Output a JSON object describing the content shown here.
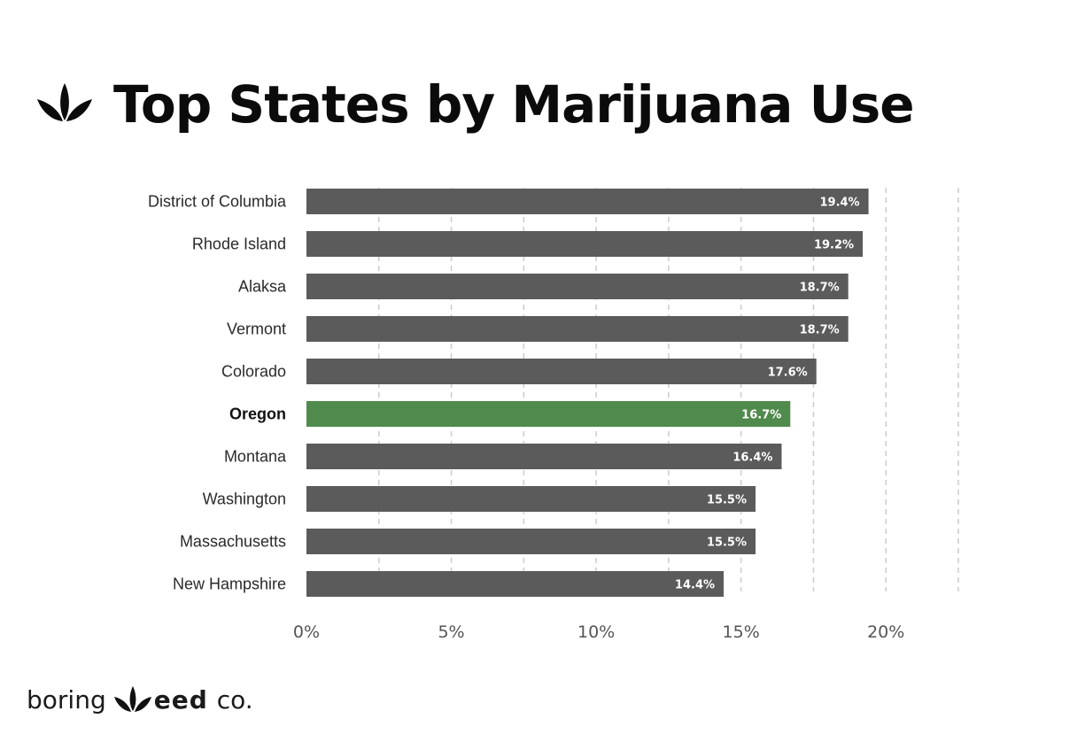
{
  "header": {
    "title": "Top States by Marijuana Use",
    "logo_icon": "cannabis-leaf-icon"
  },
  "brand": {
    "part1": "boring",
    "part2": "eed",
    "part3": "co.",
    "logo_icon": "cannabis-leaf-icon"
  },
  "colors": {
    "bar": "#5b5b5b",
    "highlight": "#508a4c",
    "grid": "#cccccc"
  },
  "chart_data": {
    "type": "bar",
    "orientation": "horizontal",
    "categories": [
      "District of Columbia",
      "Rhode Island",
      "Alaksa",
      "Vermont",
      "Colorado",
      "Oregon",
      "Montana",
      "Washington",
      "Massachusetts",
      "New Hampshire"
    ],
    "values": [
      19.4,
      19.2,
      18.7,
      18.7,
      17.6,
      16.7,
      16.4,
      15.5,
      15.5,
      14.4
    ],
    "value_labels": [
      "19.4%",
      "19.2%",
      "18.7%",
      "18.7%",
      "17.6%",
      "16.7%",
      "16.4%",
      "15.5%",
      "15.5%",
      "14.4%"
    ],
    "highlight": "Oregon",
    "xticks": [
      0,
      5,
      10,
      15,
      20
    ],
    "xtick_labels": [
      "0%",
      "5%",
      "10%",
      "15%",
      "20%"
    ],
    "xlim": [
      0,
      22.5
    ],
    "grid": "vertical dashed",
    "title": "Top States by Marijuana Use",
    "xlabel": "",
    "ylabel": ""
  }
}
